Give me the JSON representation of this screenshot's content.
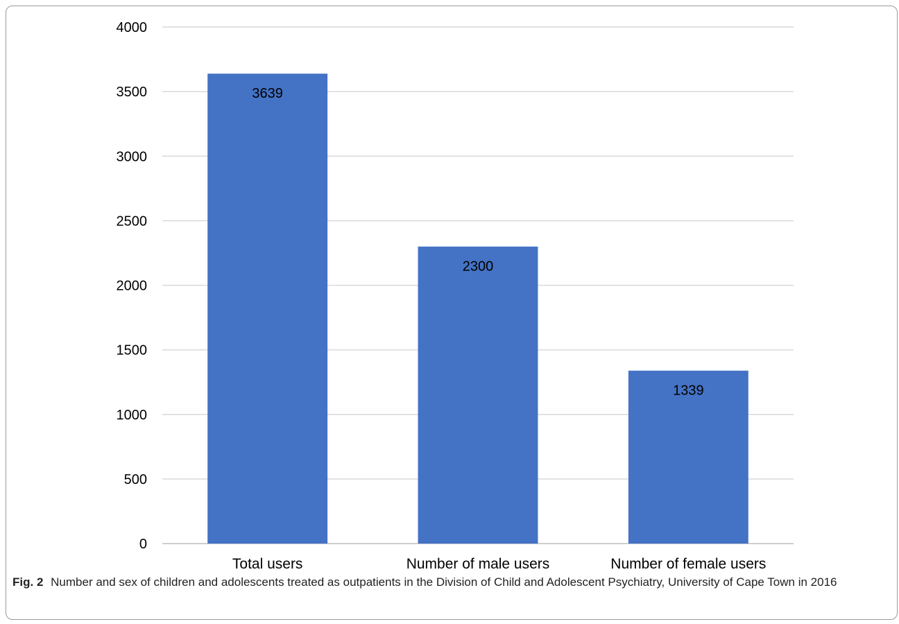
{
  "chart_data": {
    "type": "bar",
    "categories": [
      "Total users",
      "Number of male users",
      "Number of female users"
    ],
    "values": [
      3639,
      2300,
      1339
    ],
    "data_labels": [
      "3639",
      "2300",
      "1339"
    ],
    "ylim": [
      0,
      4000
    ],
    "yticks": [
      0,
      500,
      1000,
      1500,
      2000,
      2500,
      3000,
      3500,
      4000
    ],
    "grid": true,
    "legend": "none",
    "bar_color": "#4472C4",
    "grid_color": "#d9d9d9"
  },
  "caption": {
    "label": "Fig. 2",
    "text": "Number and sex of children and adolescents treated as outpatients in the Division of Child and Adolescent Psychiatry, University of Cape Town in 2016"
  }
}
